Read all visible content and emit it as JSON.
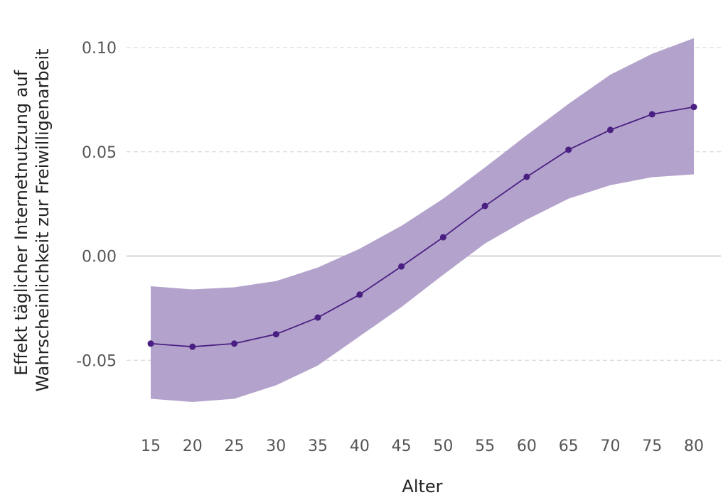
{
  "chart_data": {
    "type": "line",
    "title": "",
    "xlabel": "Alter",
    "ylabel_lines": [
      "Effekt täglicher Internetnutzung auf",
      "Wahrscheinlichkeit zur Freiwilligenarbeit"
    ],
    "x": [
      15,
      20,
      25,
      30,
      35,
      40,
      45,
      50,
      55,
      60,
      65,
      70,
      75,
      80
    ],
    "x_tick_labels": [
      "15",
      "20",
      "25",
      "30",
      "35",
      "40",
      "45",
      "50",
      "55",
      "60",
      "65",
      "70",
      "75",
      "80"
    ],
    "y_ticks": [
      0.1,
      0.05,
      0.0,
      -0.05
    ],
    "y_tick_labels": [
      "0.10",
      "0.05",
      "0.00",
      "-0.05"
    ],
    "xlim": [
      15,
      80
    ],
    "ylim": [
      -0.085,
      0.115
    ],
    "grid": "horizontal dashed",
    "series": [
      {
        "values": [
          -0.042,
          -0.0435,
          -0.042,
          -0.0375,
          -0.0295,
          -0.0185,
          -0.005,
          0.009,
          0.024,
          0.038,
          0.051,
          0.0605,
          0.068,
          0.0715
        ],
        "lower": [
          -0.0685,
          -0.07,
          -0.0685,
          -0.062,
          -0.0525,
          -0.0385,
          -0.0245,
          -0.009,
          0.006,
          0.0175,
          0.0275,
          0.034,
          0.0378,
          0.0392
        ],
        "upper": [
          -0.0145,
          -0.016,
          -0.015,
          -0.012,
          -0.0055,
          0.0035,
          0.0145,
          0.0275,
          0.0425,
          0.058,
          0.073,
          0.087,
          0.097,
          0.1045
        ],
        "color": "#4a1f82",
        "band_color": "#b3a3cc"
      }
    ]
  }
}
